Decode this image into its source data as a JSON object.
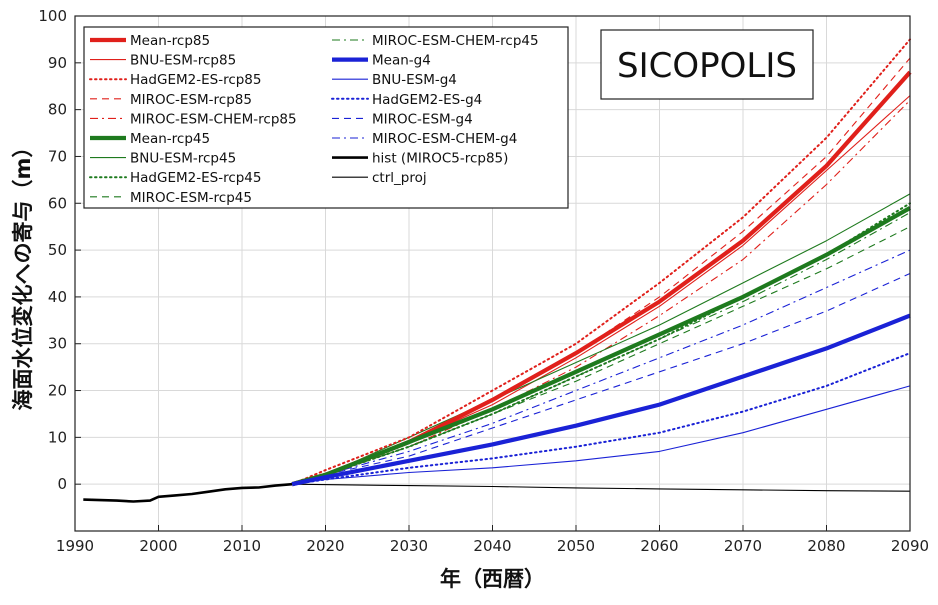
{
  "chart_data": {
    "type": "line",
    "model_label": "SICOPOLIS",
    "xlabel": "年（西暦）",
    "ylabel": "海面水位変化への寄与（m）",
    "xlim": [
      1990,
      2090
    ],
    "ylim": [
      -10,
      100
    ],
    "x_ticks": [
      1990,
      2000,
      2010,
      2020,
      2030,
      2040,
      2050,
      2060,
      2070,
      2080,
      2090
    ],
    "y_ticks": [
      0,
      10,
      20,
      30,
      40,
      50,
      60,
      70,
      80,
      90,
      100
    ],
    "grid": true,
    "legend_position": "top-left",
    "colors": {
      "rcp85": "#e0201b",
      "rcp45": "#1e7a1e",
      "g4": "#1a22d6",
      "hist": "#000000",
      "ctrl": "#000000"
    },
    "series": [
      {
        "name": "Mean-rcp85",
        "color": "#e0201b",
        "style": "solid",
        "width": 4.2,
        "x": [
          2016,
          2020,
          2030,
          2040,
          2050,
          2060,
          2070,
          2080,
          2090
        ],
        "y": [
          0,
          2,
          9,
          18,
          28,
          39,
          52,
          68,
          88
        ]
      },
      {
        "name": "BNU-ESM-rcp85",
        "color": "#e0201b",
        "style": "solid",
        "width": 1.1,
        "x": [
          2016,
          2020,
          2030,
          2040,
          2050,
          2060,
          2070,
          2080,
          2090
        ],
        "y": [
          0,
          2,
          9,
          17,
          27,
          38,
          51,
          67,
          83
        ]
      },
      {
        "name": "HadGEM2-ES-rcp85",
        "color": "#e0201b",
        "style": "dotted",
        "width": 2,
        "x": [
          2016,
          2020,
          2030,
          2040,
          2050,
          2060,
          2070,
          2080,
          2090
        ],
        "y": [
          0,
          3,
          10,
          20,
          30,
          43,
          57,
          74,
          95
        ]
      },
      {
        "name": "MIROC-ESM-rcp85",
        "color": "#e0201b",
        "style": "dashed",
        "width": 1.1,
        "x": [
          2016,
          2020,
          2030,
          2040,
          2050,
          2060,
          2070,
          2080,
          2090
        ],
        "y": [
          0,
          2,
          9,
          18,
          28,
          40,
          54,
          70,
          91
        ]
      },
      {
        "name": "MIROC-ESM-CHEM-rcp85",
        "color": "#e0201b",
        "style": "dashdot",
        "width": 1.1,
        "x": [
          2016,
          2020,
          2030,
          2040,
          2050,
          2060,
          2070,
          2080,
          2090
        ],
        "y": [
          0,
          2,
          8,
          16,
          25,
          36,
          48,
          64,
          82
        ]
      },
      {
        "name": "Mean-rcp45",
        "color": "#1e7a1e",
        "style": "solid",
        "width": 4.2,
        "x": [
          2016,
          2020,
          2025,
          2030,
          2040,
          2050,
          2060,
          2070,
          2080,
          2090
        ],
        "y": [
          0,
          2,
          5.5,
          9,
          16,
          24,
          32,
          40,
          49,
          59
        ]
      },
      {
        "name": "BNU-ESM-rcp45",
        "color": "#1e7a1e",
        "style": "solid",
        "width": 1.1,
        "x": [
          2016,
          2020,
          2025,
          2030,
          2040,
          2050,
          2060,
          2070,
          2080,
          2090
        ],
        "y": [
          0,
          2,
          6,
          10,
          18,
          26,
          34,
          43,
          52,
          62
        ]
      },
      {
        "name": "HadGEM2-ES-rcp45",
        "color": "#1e7a1e",
        "style": "dotted",
        "width": 2,
        "x": [
          2016,
          2020,
          2025,
          2030,
          2040,
          2050,
          2060,
          2070,
          2080,
          2090
        ],
        "y": [
          0,
          2,
          5,
          8,
          15,
          23,
          31,
          40,
          49,
          60
        ]
      },
      {
        "name": "MIROC-ESM-rcp45",
        "color": "#1e7a1e",
        "style": "dashed",
        "width": 1.1,
        "x": [
          2016,
          2020,
          2025,
          2030,
          2040,
          2050,
          2060,
          2070,
          2080,
          2090
        ],
        "y": [
          0,
          2,
          5,
          8,
          15,
          22,
          30,
          38,
          46,
          55
        ]
      },
      {
        "name": "MIROC-ESM-CHEM-rcp45",
        "color": "#1e7a1e",
        "style": "dashdot",
        "width": 1.1,
        "x": [
          2016,
          2020,
          2025,
          2030,
          2040,
          2050,
          2060,
          2070,
          2080,
          2090
        ],
        "y": [
          0,
          2,
          5,
          8,
          15,
          23,
          31,
          39,
          48,
          58
        ]
      },
      {
        "name": "Mean-g4",
        "color": "#1a22d6",
        "style": "solid",
        "width": 4.2,
        "x": [
          2016,
          2020,
          2030,
          2040,
          2050,
          2060,
          2070,
          2080,
          2090
        ],
        "y": [
          0,
          1.5,
          5,
          8.5,
          12.5,
          17,
          23,
          29,
          36
        ]
      },
      {
        "name": "BNU-ESM-g4",
        "color": "#1a22d6",
        "style": "solid",
        "width": 1.1,
        "x": [
          2016,
          2020,
          2030,
          2040,
          2050,
          2060,
          2070,
          2080,
          2090
        ],
        "y": [
          0,
          1,
          2.5,
          3.5,
          5,
          7,
          11,
          16,
          21
        ]
      },
      {
        "name": "HadGEM2-ES-g4",
        "color": "#1a22d6",
        "style": "dotted",
        "width": 2,
        "x": [
          2016,
          2020,
          2030,
          2040,
          2050,
          2060,
          2070,
          2080,
          2090
        ],
        "y": [
          0,
          1,
          3.5,
          5.5,
          8,
          11,
          15.5,
          21,
          28
        ]
      },
      {
        "name": "MIROC-ESM-g4",
        "color": "#1a22d6",
        "style": "dashed",
        "width": 1.1,
        "x": [
          2016,
          2020,
          2030,
          2040,
          2050,
          2060,
          2070,
          2080,
          2090
        ],
        "y": [
          0,
          2,
          6,
          12,
          18,
          24,
          30,
          37,
          45
        ]
      },
      {
        "name": "MIROC-ESM-CHEM-g4",
        "color": "#1a22d6",
        "style": "dashdot",
        "width": 1.1,
        "x": [
          2016,
          2020,
          2030,
          2040,
          2050,
          2060,
          2070,
          2080,
          2090
        ],
        "y": [
          0,
          2,
          7,
          13,
          20,
          27,
          34,
          42,
          50
        ]
      },
      {
        "name": "hist (MIROC5-rcp85)",
        "color": "#000000",
        "style": "solid",
        "width": 2.6,
        "x": [
          1991,
          1993,
          1995,
          1997,
          1999,
          2000,
          2002,
          2004,
          2006,
          2008,
          2010,
          2012,
          2014,
          2016
        ],
        "y": [
          -3.3,
          -3.4,
          -3.5,
          -3.7,
          -3.5,
          -2.7,
          -2.4,
          -2.1,
          -1.6,
          -1.1,
          -0.8,
          -0.7,
          -0.3,
          0
        ]
      },
      {
        "name": "ctrl_proj",
        "color": "#000000",
        "style": "solid",
        "width": 1.1,
        "x": [
          2016,
          2030,
          2040,
          2050,
          2060,
          2070,
          2080,
          2090
        ],
        "y": [
          0,
          -0.3,
          -0.5,
          -0.8,
          -1.0,
          -1.2,
          -1.4,
          -1.5
        ]
      }
    ]
  }
}
